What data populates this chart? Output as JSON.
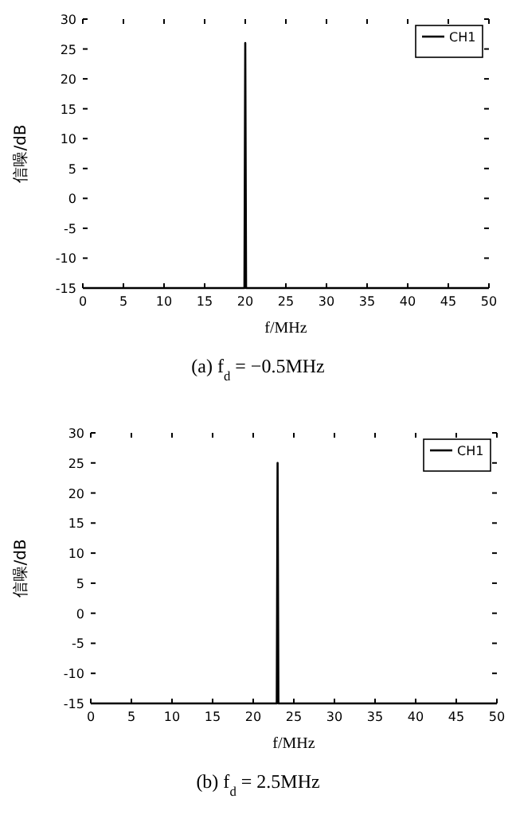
{
  "chart_data": [
    {
      "type": "line",
      "title": "(a) f$_{d}$ = −0.5MHz",
      "xlabel": "f/MHz",
      "ylabel": "信噪/dB",
      "xlim": [
        0,
        50
      ],
      "ylim": [
        -15,
        30
      ],
      "xticks": [
        0,
        5,
        10,
        15,
        20,
        25,
        30,
        35,
        40,
        45,
        50
      ],
      "yticks": [
        -15,
        -10,
        -5,
        0,
        5,
        10,
        15,
        20,
        25,
        30
      ],
      "legend": "top right",
      "grid": false,
      "series": [
        {
          "name": "CH1",
          "color": "#000000",
          "x": [
            0,
            19.9,
            20,
            20.1,
            50
          ],
          "values": [
            -15,
            -15,
            26,
            -15,
            -15
          ]
        }
      ]
    },
    {
      "type": "line",
      "title": "(b) f$_{d}$ = 2.5MHz",
      "xlabel": "f/MHz",
      "ylabel": "信噪/dB",
      "xlim": [
        0,
        50
      ],
      "ylim": [
        -15,
        30
      ],
      "xticks": [
        0,
        5,
        10,
        15,
        20,
        25,
        30,
        35,
        40,
        45,
        50
      ],
      "yticks": [
        -15,
        -10,
        -5,
        0,
        5,
        10,
        15,
        20,
        25,
        30
      ],
      "legend": "top right",
      "grid": false,
      "series": [
        {
          "name": "CH1",
          "color": "#000000",
          "x": [
            0,
            22.9,
            23,
            23.1,
            50
          ],
          "values": [
            -15,
            -15,
            25,
            -15,
            -15
          ]
        }
      ]
    }
  ]
}
